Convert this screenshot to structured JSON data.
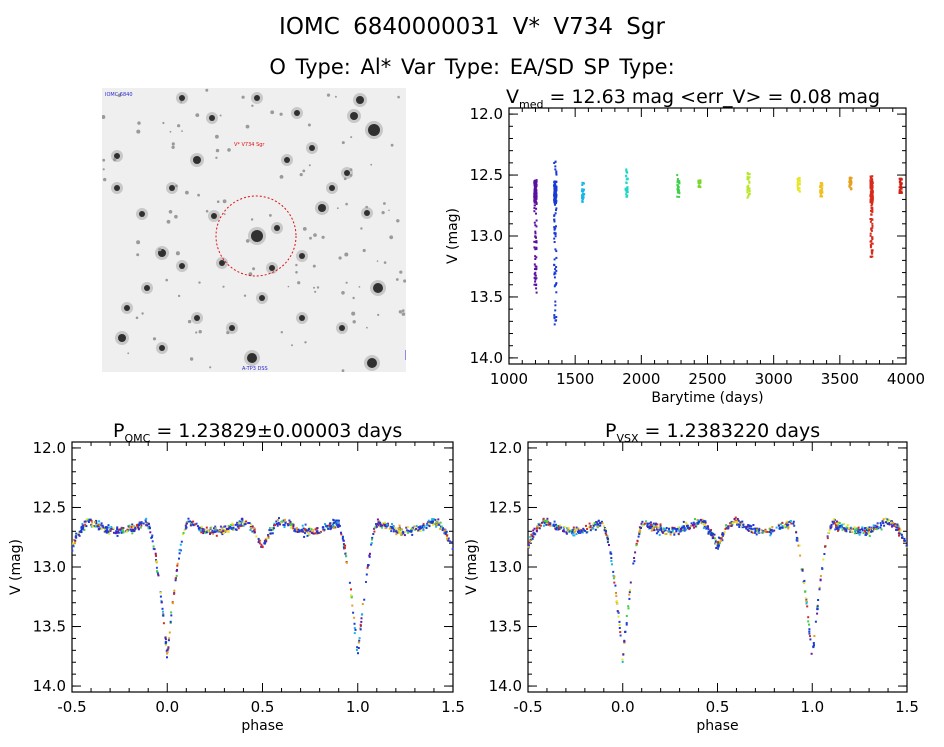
{
  "header": {
    "line1": "IOMC 6840000031    V* V734 Sgr",
    "line2": "O Type: Al*  Var Type: EA/SD  SP Type:"
  },
  "finder": {
    "top_left_label": "IOMC 6840",
    "target_label": "V* V734 Sgr",
    "bottom_label": "A-TP3 DSS",
    "circle_color": "#e01010"
  },
  "chart_data": [
    {
      "type": "scatter",
      "id": "lightcurve",
      "title_prefix": "V",
      "title_sub": "med",
      "title_rest": " = 12.63 mag <err_V> = 0.08 mag",
      "xlabel": "Barytime (days)",
      "ylabel": "V (mag)",
      "xlim": [
        1000,
        4000
      ],
      "ylim": [
        14.05,
        11.95
      ],
      "xticks": [
        "1000",
        "1500",
        "2000",
        "2500",
        "3000",
        "3500",
        "4000"
      ],
      "yticks": [
        "12.0",
        "12.5",
        "13.0",
        "13.5",
        "14.0"
      ],
      "observation_groups": [
        {
          "x": 1200,
          "v_range": [
            12.53,
            13.5
          ],
          "color": "#5a10a0"
        },
        {
          "x": 1350,
          "v_range": [
            12.38,
            13.75
          ],
          "color": "#1a3ad6"
        },
        {
          "x": 1560,
          "v_range": [
            12.55,
            12.72
          ],
          "color": "#19b6e6"
        },
        {
          "x": 1890,
          "v_range": [
            12.45,
            12.68
          ],
          "color": "#22d6c6"
        },
        {
          "x": 2280,
          "v_range": [
            12.5,
            12.68
          ],
          "color": "#3fd04a"
        },
        {
          "x": 2440,
          "v_range": [
            12.54,
            12.6
          ],
          "color": "#7ad62a"
        },
        {
          "x": 2810,
          "v_range": [
            12.45,
            12.7
          ],
          "color": "#b8e62a"
        },
        {
          "x": 3190,
          "v_range": [
            12.52,
            12.64
          ],
          "color": "#e6e62a"
        },
        {
          "x": 3360,
          "v_range": [
            12.55,
            12.68
          ],
          "color": "#f0c020"
        },
        {
          "x": 3580,
          "v_range": [
            12.52,
            12.62
          ],
          "color": "#e6a020"
        },
        {
          "x": 3740,
          "v_range": [
            12.5,
            13.18
          ],
          "color": "#d82a1a"
        },
        {
          "x": 3960,
          "v_range": [
            12.52,
            12.65
          ],
          "color": "#d02010"
        }
      ]
    },
    {
      "type": "scatter",
      "id": "phased_omc",
      "title_prefix": "P",
      "title_sub": "OMC",
      "title_rest": " = 1.23829±0.00003 days",
      "xlabel": "phase",
      "ylabel": "V (mag)",
      "xlim": [
        -0.5,
        1.5
      ],
      "ylim": [
        14.05,
        11.95
      ],
      "xticks": [
        "-0.5",
        "0.0",
        "0.5",
        "1.0",
        "1.5"
      ],
      "yticks": [
        "12.0",
        "12.5",
        "13.0",
        "13.5",
        "14.0"
      ],
      "eclipse": {
        "max_mag": 12.58,
        "primary_depth": 13.75,
        "secondary_depth": 12.95
      }
    },
    {
      "type": "scatter",
      "id": "phased_vsx",
      "title_prefix": "P",
      "title_sub": "VSX",
      "title_rest": " = 1.2383220 days",
      "xlabel": "phase",
      "ylabel": "V (mag)",
      "xlim": [
        -0.5,
        1.5
      ],
      "ylim": [
        14.05,
        11.95
      ],
      "xticks": [
        "-0.5",
        "0.0",
        "0.5",
        "1.0",
        "1.5"
      ],
      "yticks": [
        "12.0",
        "12.5",
        "13.0",
        "13.5",
        "14.0"
      ],
      "eclipse": {
        "max_mag": 12.58,
        "primary_depth": 13.78,
        "secondary_depth": 12.93
      }
    }
  ]
}
